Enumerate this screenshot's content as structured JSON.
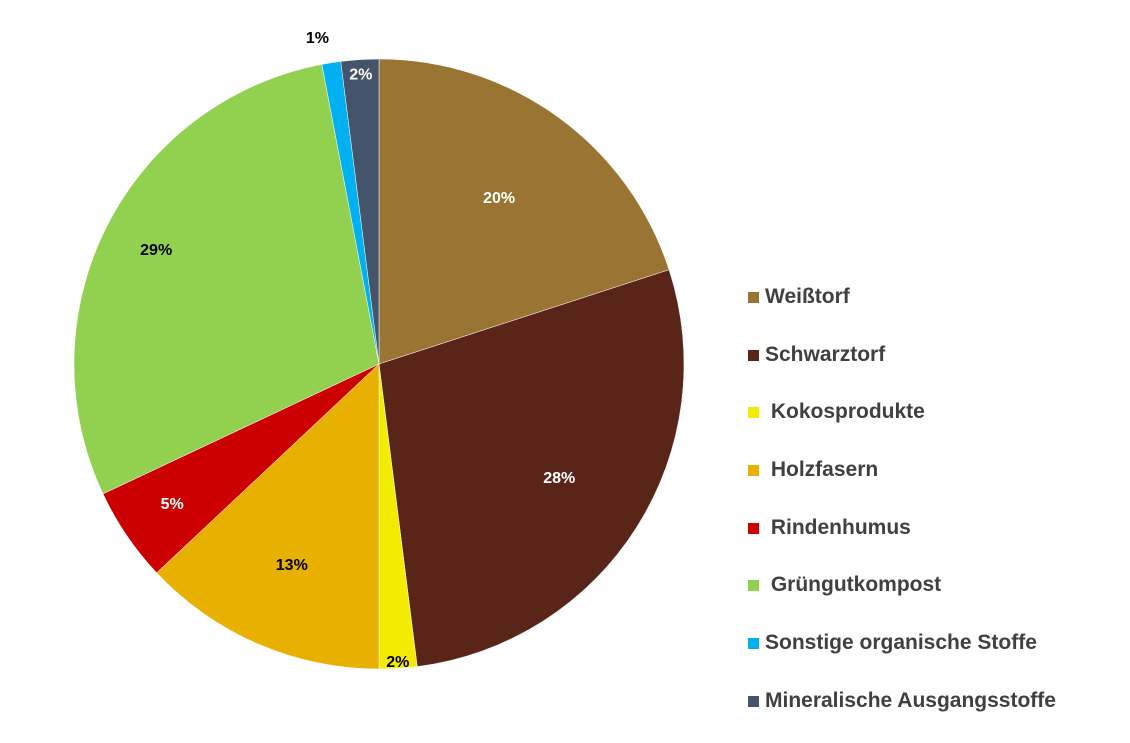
{
  "chart_data": {
    "type": "pie",
    "title": "",
    "legend_position": "right",
    "slices": [
      {
        "name": "Weißtorf",
        "legend_label": "Weißtorf",
        "value": 20,
        "label": "20%",
        "color": "#997432",
        "label_color": "#ffffff"
      },
      {
        "name": "Schwarztorf",
        "legend_label": "Schwarztorf",
        "value": 28,
        "label": "28%",
        "color": "#5a2519",
        "label_color": "#ffffff"
      },
      {
        "name": "Kokosprodukte",
        "legend_label": " Kokosprodukte",
        "value": 2,
        "label": "2%",
        "color": "#f3ec00",
        "label_color": "#000000"
      },
      {
        "name": "Holzfasern",
        "legend_label": " Holzfasern",
        "value": 13,
        "label": "13%",
        "color": "#e8b000",
        "label_color": "#000000"
      },
      {
        "name": "Rindenhumus",
        "legend_label": " Rindenhumus",
        "value": 5,
        "label": "5%",
        "color": "#cc0000",
        "label_color": "#ffffff"
      },
      {
        "name": "Grüngutkompost",
        "legend_label": " Grüngutkompost",
        "value": 29,
        "label": "29%",
        "color": "#92d050",
        "label_color": "#000000"
      },
      {
        "name": "Sonstige organische Stoffe",
        "legend_label": "Sonstige organische Stoffe",
        "value": 1,
        "label": "1%",
        "color": "#00b0f0",
        "label_color": "#000000"
      },
      {
        "name": "Mineralische Ausgangsstoffe",
        "legend_label": "Mineralische Ausgangsstoffe",
        "value": 2,
        "label": "2%",
        "color": "#44546a",
        "label_color": "#ffffff"
      }
    ]
  }
}
